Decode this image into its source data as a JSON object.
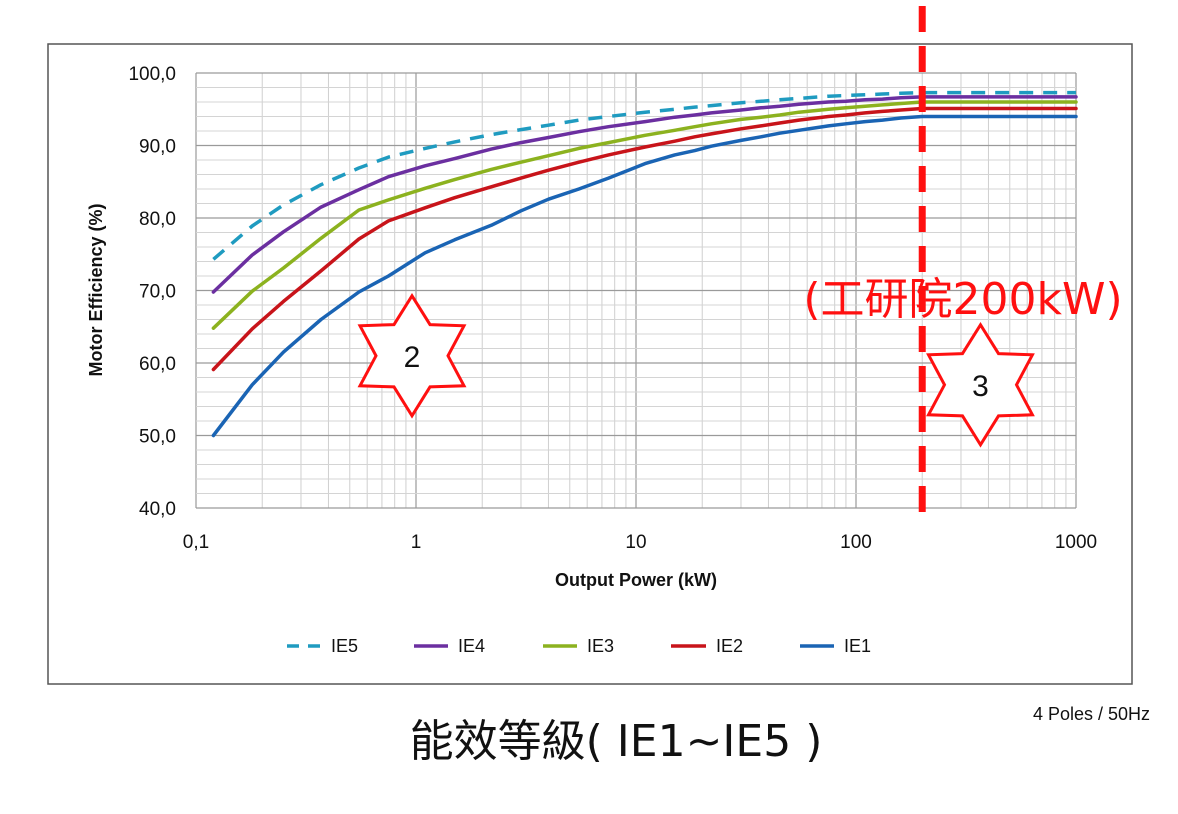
{
  "chart_data": {
    "type": "line",
    "title": "",
    "xlabel": "Output Power (kW)",
    "ylabel": "Motor Efficiency (%)",
    "x_scale": "log",
    "xlim": [
      0.1,
      1000
    ],
    "ylim": [
      40,
      100
    ],
    "x_ticks": [
      "0,1",
      "1",
      "10",
      "100",
      "1000"
    ],
    "y_ticks": [
      "40,0",
      "50,0",
      "60,0",
      "70,0",
      "80,0",
      "90,0",
      "100,0"
    ],
    "grid": true,
    "legend_position": "bottom",
    "x": [
      0.12,
      0.18,
      0.25,
      0.37,
      0.55,
      0.75,
      1.1,
      1.5,
      2.2,
      3,
      4,
      5.5,
      7.5,
      11,
      15,
      18.5,
      22,
      30,
      37,
      45,
      55,
      75,
      90,
      110,
      132,
      160,
      200,
      1000
    ],
    "series": [
      {
        "name": "IE5",
        "dashed": true,
        "color": "#1f9bc0",
        "values": [
          74.3,
          78.9,
          81.8,
          84.6,
          86.9,
          88.4,
          89.6,
          90.5,
          91.5,
          92.2,
          92.8,
          93.5,
          94.0,
          94.6,
          95.0,
          95.3,
          95.5,
          95.9,
          96.1,
          96.3,
          96.5,
          96.8,
          96.9,
          97.0,
          97.1,
          97.2,
          97.3,
          97.3
        ]
      },
      {
        "name": "IE4",
        "dashed": false,
        "color": "#6b2fa0",
        "values": [
          69.8,
          74.9,
          78.1,
          81.5,
          83.9,
          85.7,
          87.2,
          88.2,
          89.5,
          90.4,
          91.1,
          91.9,
          92.6,
          93.3,
          93.9,
          94.2,
          94.5,
          94.9,
          95.2,
          95.4,
          95.7,
          96.0,
          96.1,
          96.3,
          96.4,
          96.6,
          96.7,
          96.7
        ]
      },
      {
        "name": "IE3",
        "dashed": false,
        "color": "#8cb21f",
        "values": [
          64.8,
          69.9,
          73.1,
          77.2,
          81.1,
          82.5,
          84.1,
          85.3,
          86.7,
          87.7,
          88.6,
          89.6,
          90.4,
          91.4,
          92.1,
          92.6,
          93.0,
          93.6,
          93.9,
          94.2,
          94.6,
          95.0,
          95.2,
          95.4,
          95.6,
          95.8,
          96.0,
          96.0
        ]
      },
      {
        "name": "IE2",
        "dashed": false,
        "color": "#c8141a",
        "values": [
          59.1,
          64.7,
          68.5,
          72.7,
          77.1,
          79.6,
          81.4,
          82.8,
          84.3,
          85.5,
          86.6,
          87.7,
          88.7,
          89.8,
          90.6,
          91.2,
          91.6,
          92.3,
          92.7,
          93.1,
          93.5,
          94.0,
          94.2,
          94.5,
          94.7,
          94.9,
          95.1,
          95.1
        ]
      },
      {
        "name": "IE1",
        "dashed": false,
        "color": "#1a64b4",
        "values": [
          50.0,
          57.0,
          61.5,
          66.0,
          69.8,
          72.0,
          75.2,
          77.0,
          79.0,
          81.0,
          82.6,
          84.0,
          85.5,
          87.5,
          88.7,
          89.3,
          89.9,
          90.7,
          91.2,
          91.7,
          92.1,
          92.7,
          93.0,
          93.3,
          93.5,
          93.8,
          94.0,
          94.0
        ]
      }
    ],
    "marker": {
      "x": 200,
      "color": "#ff1010",
      "label": "(工研院200kW)"
    },
    "annotations": [
      {
        "label": "2",
        "x": 1,
        "y": 61
      },
      {
        "label": "3",
        "x": 400,
        "y": 57
      }
    ],
    "note": "4 Poles / 50Hz",
    "caption": "能效等級( IE1~IE5 )"
  }
}
